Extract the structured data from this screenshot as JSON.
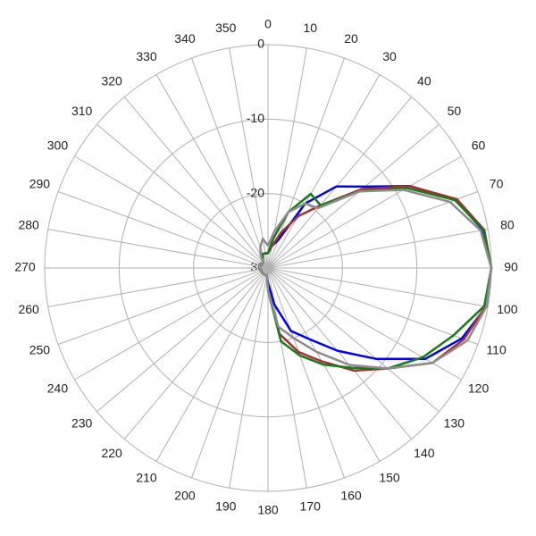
{
  "chart_data": {
    "type": "polar",
    "rlim": [
      -30,
      0
    ],
    "rticks": [
      -30,
      -20,
      -10,
      0
    ],
    "thetaticks": [
      0,
      10,
      20,
      30,
      40,
      50,
      60,
      70,
      80,
      90,
      100,
      110,
      120,
      130,
      140,
      150,
      160,
      170,
      180,
      190,
      200,
      210,
      220,
      230,
      240,
      250,
      260,
      270,
      280,
      290,
      300,
      310,
      320,
      330,
      340,
      350
    ],
    "theta": [
      0,
      10,
      20,
      30,
      40,
      50,
      60,
      70,
      80,
      90,
      100,
      110,
      120,
      130,
      140,
      150,
      160,
      170,
      180,
      190,
      200,
      210,
      220,
      230,
      240,
      250,
      260,
      270,
      280,
      290,
      300,
      310,
      320,
      330,
      340,
      350
    ],
    "grid": true,
    "series": [
      {
        "color": "#0000ee",
        "values": [
          -28,
          -27,
          -26,
          -20,
          -15.7,
          -13,
          -8,
          -3.2,
          -0.7,
          0,
          -0.2,
          -2.3,
          -5.6,
          -11,
          -15.5,
          -19,
          -21,
          -25,
          -28,
          -29,
          -29,
          -29,
          -29,
          -29,
          -29,
          -29,
          -29,
          -29,
          -29,
          -29,
          -29,
          -29,
          -29,
          -28.5,
          -28,
          -28
        ]
      },
      {
        "color": "#a33030",
        "values": [
          -28,
          -27,
          -25,
          -22,
          -19,
          -13.5,
          -8,
          -3,
          -0.5,
          0,
          -0.3,
          -2,
          -4.5,
          -9,
          -12,
          -15.5,
          -18,
          -21,
          -27,
          -29,
          -29,
          -29,
          -29,
          -29,
          -29,
          -29,
          -29,
          -29,
          -29,
          -29,
          -29,
          -29,
          -29,
          -28.5,
          -28,
          -28
        ]
      },
      {
        "color": "#1a7a1a",
        "values": [
          -28,
          -26,
          -22,
          -18.5,
          -19,
          -14,
          -8.5,
          -3.3,
          -0.6,
          0,
          -0.5,
          -3.5,
          -6,
          -9,
          -12.5,
          -15,
          -17.5,
          -20,
          -27,
          -29,
          -29,
          -29,
          -29,
          -29,
          -29,
          -29,
          -29,
          -29,
          -29,
          -29,
          -29,
          -29,
          -29,
          -28.5,
          -28,
          -28
        ]
      },
      {
        "color": "#8c8c8c",
        "values": [
          -27,
          -25,
          -22,
          -20,
          -19.5,
          -14,
          -9,
          -4,
          -1,
          0,
          -0.2,
          -1.5,
          -4.5,
          -9,
          -13,
          -17,
          -20,
          -22,
          -27,
          -29,
          -29,
          -29,
          -29,
          -29,
          -29,
          -29,
          -29,
          -29,
          -29,
          -29,
          -29,
          -29,
          -29,
          -28,
          -27,
          -26
        ]
      }
    ]
  }
}
